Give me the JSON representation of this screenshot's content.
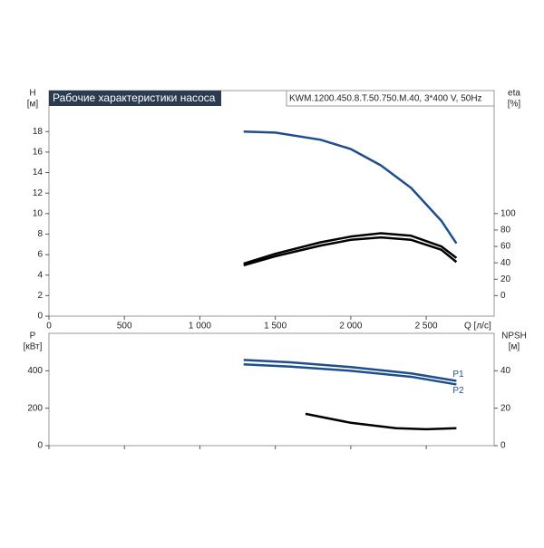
{
  "chart_data": [
    {
      "type": "line",
      "title": "Рабочие характеристики насоса",
      "subtitle": "KWM.1200.450.8.T.50.750.M.40, 3*400 V, 50Hz",
      "xlabel": "Q [л/с]",
      "ylabel": "H",
      "yunit": "[м]",
      "y2label": "eta",
      "y2unit": "[%]",
      "xlim": [
        0,
        2950
      ],
      "xticks": [
        0,
        500,
        {
          "value": 1000,
          "label": "1 000"
        },
        {
          "value": 1500,
          "label": "1 500"
        },
        {
          "value": 2000,
          "label": "2 000"
        },
        {
          "value": 2500,
          "label": "2 500"
        }
      ],
      "ylim": [
        0,
        22
      ],
      "yticks": [
        0,
        2,
        4,
        6,
        8,
        10,
        12,
        14,
        16,
        18
      ],
      "y2lim": [
        -25,
        250
      ],
      "y2ticks": [
        0,
        20,
        40,
        60,
        80,
        100
      ],
      "series": [
        {
          "color": "#1f4e8c",
          "x": [
            1290,
            1500,
            1800,
            2000,
            2200,
            2400,
            2600,
            2700
          ],
          "values": [
            18,
            17.9,
            17.2,
            16.3,
            14.7,
            12.5,
            9.3,
            7.1
          ]
        },
        {
          "color": "#000000",
          "axis": "y2",
          "x": [
            1290,
            1500,
            1800,
            2000,
            2200,
            2400,
            2600,
            2700
          ],
          "values": [
            39,
            51,
            65,
            72,
            76,
            73,
            60,
            46
          ]
        },
        {
          "color": "#000000",
          "axis": "y2",
          "x": [
            1290,
            1500,
            1800,
            2000,
            2200,
            2400,
            2600,
            2700
          ],
          "values": [
            37,
            48,
            61,
            68,
            71,
            68,
            56,
            41
          ]
        }
      ]
    },
    {
      "type": "line",
      "ylabel": "P",
      "yunit": "[кВт]",
      "y2label": "NPSH",
      "y2unit": "[м]",
      "ylim": [
        0,
        600
      ],
      "yticks": [
        0,
        200,
        400
      ],
      "y2lim": [
        0,
        60
      ],
      "y2ticks": [
        0,
        20,
        40
      ],
      "series": [
        {
          "name": "P1",
          "color": "#1f4e8c",
          "x": [
            1290,
            1600,
            2000,
            2400,
            2700
          ],
          "values": [
            458,
            445,
            420,
            386,
            346
          ]
        },
        {
          "name": "P2",
          "color": "#1f4e8c",
          "x": [
            1290,
            1600,
            2000,
            2400,
            2700
          ],
          "values": [
            434,
            422,
            400,
            368,
            327
          ]
        },
        {
          "color": "#000000",
          "axis": "y2",
          "x": [
            1700,
            2000,
            2300,
            2500,
            2700
          ],
          "values": [
            17,
            12.2,
            9.3,
            8.8,
            9.3
          ]
        }
      ]
    }
  ]
}
